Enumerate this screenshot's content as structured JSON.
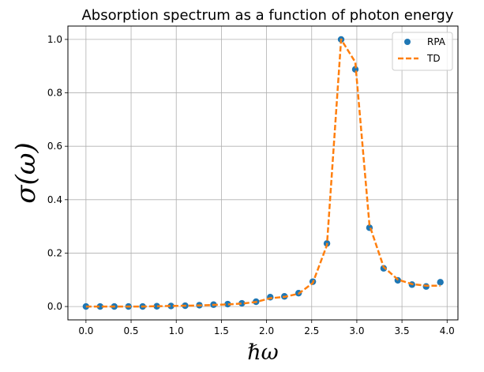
{
  "chart_data": {
    "type": "line",
    "title": "Absorption spectrum as a function of photon energy",
    "xlabel": "ℏω",
    "ylabel": "σ(ω)",
    "xlim": [
      -0.2,
      4.12
    ],
    "ylim": [
      -0.05,
      1.05
    ],
    "xticks": [
      0.0,
      0.5,
      1.0,
      1.5,
      2.0,
      2.5,
      3.0,
      3.5,
      4.0
    ],
    "xtick_labels": [
      "0.0",
      "0.5",
      "1.0",
      "1.5",
      "2.0",
      "2.5",
      "3.0",
      "3.5",
      "4.0"
    ],
    "yticks": [
      0.0,
      0.2,
      0.4,
      0.6,
      0.8,
      1.0
    ],
    "ytick_labels": [
      "0.0",
      "0.2",
      "0.4",
      "0.6",
      "0.8",
      "1.0"
    ],
    "grid": true,
    "legend_position": "top-right",
    "series": [
      {
        "name": "RPA",
        "style": "markers",
        "color": "#1f77b4",
        "x": [
          0.0,
          0.157,
          0.314,
          0.471,
          0.628,
          0.785,
          0.942,
          1.099,
          1.256,
          1.413,
          1.57,
          1.727,
          1.884,
          2.041,
          2.198,
          2.355,
          2.512,
          2.669,
          2.826,
          2.983,
          3.14,
          3.297,
          3.454,
          3.611,
          3.768,
          3.925
        ],
        "y": [
          0.0,
          0.0,
          0.0,
          0.0,
          0.0,
          0.001,
          0.002,
          0.003,
          0.005,
          0.007,
          0.009,
          0.012,
          0.018,
          0.035,
          0.038,
          0.05,
          0.093,
          0.236,
          1.0,
          0.888,
          0.295,
          0.143,
          0.098,
          0.082,
          0.075,
          0.091
        ]
      },
      {
        "name": "TD",
        "style": "dashed",
        "color": "#ff7f0e",
        "x": [
          0.0,
          0.157,
          0.314,
          0.471,
          0.628,
          0.785,
          0.942,
          1.099,
          1.256,
          1.413,
          1.57,
          1.727,
          1.884,
          2.041,
          2.198,
          2.355,
          2.512,
          2.669,
          2.826,
          2.983,
          3.14,
          3.297,
          3.454,
          3.611,
          3.768,
          3.925
        ],
        "y": [
          0.0,
          0.0,
          0.0,
          0.0,
          0.0,
          0.001,
          0.002,
          0.003,
          0.004,
          0.006,
          0.008,
          0.011,
          0.017,
          0.031,
          0.036,
          0.048,
          0.088,
          0.23,
          1.0,
          0.915,
          0.305,
          0.148,
          0.101,
          0.084,
          0.078,
          0.078
        ]
      }
    ]
  }
}
